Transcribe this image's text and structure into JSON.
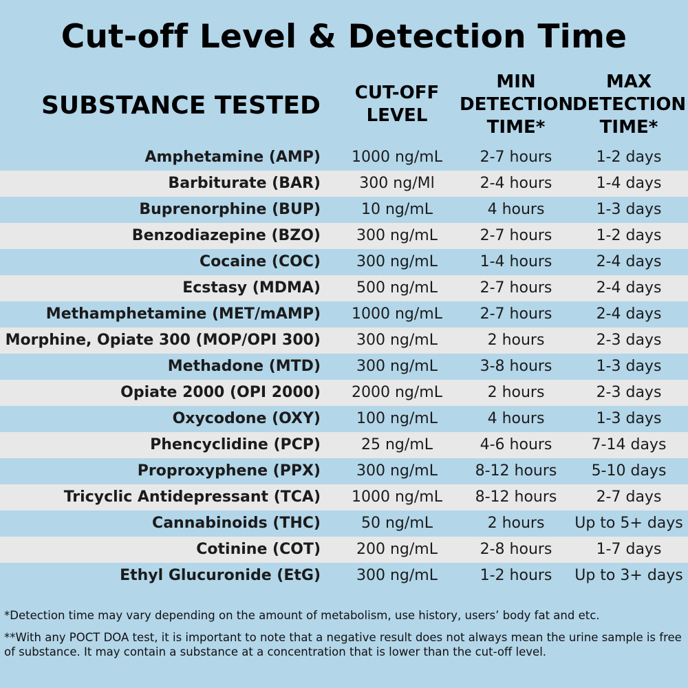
{
  "title": "Cut-off Level & Detection Time",
  "headers": {
    "substance": "SUBSTANCE TESTED",
    "cutoff": [
      "CUT-OFF",
      "LEVEL"
    ],
    "min": [
      "MIN",
      "DETECTION",
      "TIME*"
    ],
    "max": [
      "MAX",
      "DETECTION",
      "TIME*"
    ]
  },
  "rows": [
    {
      "name": "Amphetamine (AMP)",
      "cutoff": "1000 ng/mL",
      "min": "2-7 hours",
      "max": "1-2 days"
    },
    {
      "name": "Barbiturate (BAR)",
      "cutoff": "300 ng/Ml",
      "min": "2-4 hours",
      "max": "1-4 days"
    },
    {
      "name": "Buprenorphine (BUP)",
      "cutoff": "10 ng/mL",
      "min": "4 hours",
      "max": "1-3 days"
    },
    {
      "name": "Benzodiazepine (BZO)",
      "cutoff": "300 ng/mL",
      "min": "2-7 hours",
      "max": "1-2 days"
    },
    {
      "name": "Cocaine (COC)",
      "cutoff": "300 ng/mL",
      "min": "1-4 hours",
      "max": "2-4 days"
    },
    {
      "name": "Ecstasy (MDMA)",
      "cutoff": "500 ng/mL",
      "min": "2-7 hours",
      "max": "2-4 days"
    },
    {
      "name": "Methamphetamine (MET/mAMP)",
      "cutoff": "1000 ng/mL",
      "min": "2-7 hours",
      "max": "2-4 days"
    },
    {
      "name": "Morphine, Opiate 300 (MOP/OPI 300)",
      "cutoff": "300 ng/mL",
      "min": "2 hours",
      "max": "2-3 days"
    },
    {
      "name": "Methadone (MTD)",
      "cutoff": "300 ng/mL",
      "min": "3-8 hours",
      "max": "1-3 days"
    },
    {
      "name": "Opiate 2000 (OPI 2000)",
      "cutoff": "2000 ng/mL",
      "min": "2 hours",
      "max": "2-3 days"
    },
    {
      "name": "Oxycodone (OXY)",
      "cutoff": "100 ng/mL",
      "min": "4 hours",
      "max": "1-3 days"
    },
    {
      "name": "Phencyclidine (PCP)",
      "cutoff": "25 ng/mL",
      "min": "4-6 hours",
      "max": "7-14 days"
    },
    {
      "name": "Proproxyphene (PPX)",
      "cutoff": "300 ng/mL",
      "min": "8-12 hours",
      "max": "5-10 days"
    },
    {
      "name": "Tricyclic Antidepressant (TCA)",
      "cutoff": "1000 ng/mL",
      "min": "8-12 hours",
      "max": "2-7 days"
    },
    {
      "name": "Cannabinoids (THC)",
      "cutoff": "50 ng/mL",
      "min": "2 hours",
      "max": "Up to 5+ days"
    },
    {
      "name": "Cotinine (COT)",
      "cutoff": "200 ng/mL",
      "min": "2-8 hours",
      "max": "1-7 days"
    },
    {
      "name": "Ethyl Glucuronide (EtG)",
      "cutoff": "300 ng/mL",
      "min": "1-2 hours",
      "max": "Up to 3+ days"
    }
  ],
  "notes": [
    "*Detection time may vary depending on the amount of metabolism, use history, users’ body fat and etc.",
    "**With any POCT DOA test, it is important to note that a negative result does not always mean the urine sample is free of substance. It may contain a substance at a concentration that is lower than the cut-off level."
  ],
  "colors": {
    "background": "#b3d6e9",
    "alt_row": "#e8e8e8"
  }
}
